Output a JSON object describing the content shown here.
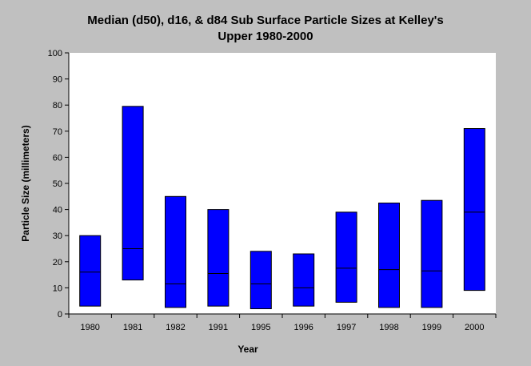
{
  "chart_data": {
    "type": "bar",
    "subtype": "floating-range-with-median",
    "title_lines": [
      "Median (d50), d16, & d84 Sub Surface Particle Sizes at Kelley's",
      "Upper 1980-2000"
    ],
    "xlabel": "Year",
    "ylabel": "Particle Size (millimeters)",
    "ylim": [
      0,
      100
    ],
    "yticks": [
      "0",
      "10",
      "20",
      "30",
      "40",
      "50",
      "60",
      "70",
      "80",
      "90",
      "100"
    ],
    "categories": [
      "1980",
      "1981",
      "1982",
      "1991",
      "1995",
      "1996",
      "1997",
      "1998",
      "1999",
      "2000"
    ],
    "series": [
      {
        "name": "d16",
        "values": [
          3,
          13,
          2.5,
          3,
          2,
          3,
          4.5,
          2.5,
          2.5,
          9
        ]
      },
      {
        "name": "d50",
        "values": [
          16,
          25,
          11.5,
          15.5,
          11.5,
          10,
          17.5,
          17,
          16.5,
          39
        ]
      },
      {
        "name": "d84",
        "values": [
          30,
          79.5,
          45,
          40,
          24,
          23,
          39,
          42.5,
          43.5,
          71
        ]
      }
    ],
    "grid": false,
    "colors": {
      "bar_fill": "#0000ff",
      "outline": "#000000",
      "background": "#c0c0c0",
      "plot_background": "#ffffff"
    }
  }
}
